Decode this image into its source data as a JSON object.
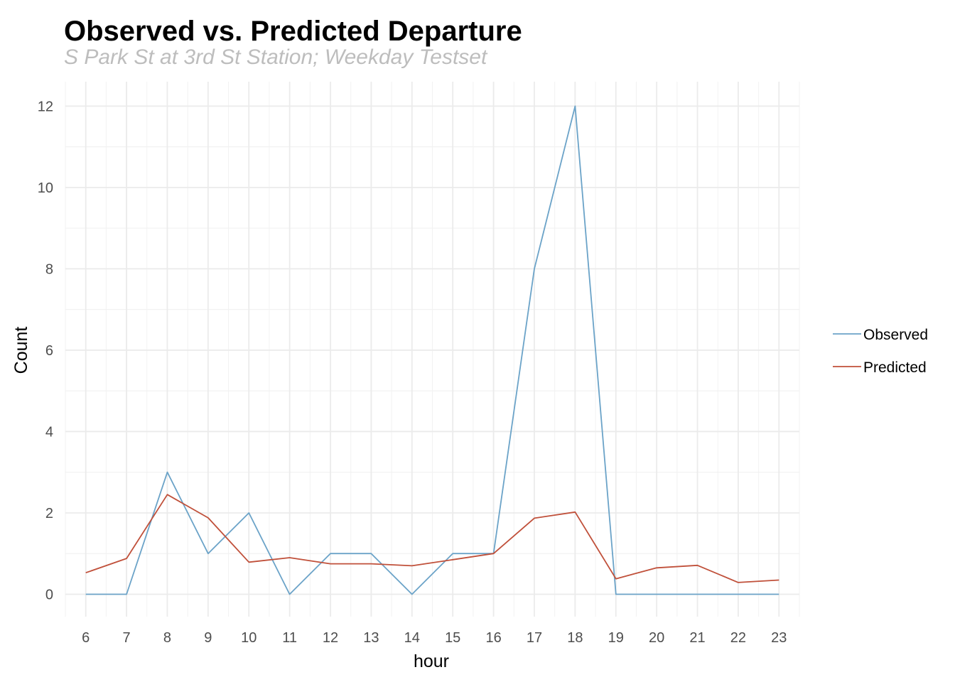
{
  "chart_data": {
    "type": "line",
    "title": "Observed vs. Predicted Departure",
    "subtitle": "S Park St at 3rd St Station; Weekday Testset",
    "xlabel": "hour",
    "ylabel": "Count",
    "x": [
      6,
      7,
      8,
      9,
      10,
      11,
      12,
      13,
      14,
      15,
      16,
      17,
      18,
      19,
      20,
      21,
      22,
      23
    ],
    "x_tick_labels": [
      "6",
      "7",
      "8",
      "9",
      "10",
      "11",
      "12",
      "13",
      "14",
      "15",
      "16",
      "17",
      "18",
      "19",
      "20",
      "21",
      "22",
      "23"
    ],
    "y_ticks": [
      0,
      2,
      4,
      6,
      8,
      10,
      12
    ],
    "y_tick_labels": [
      "0",
      "2",
      "4",
      "6",
      "8",
      "10",
      "12"
    ],
    "xlim": [
      5.5,
      23.5
    ],
    "ylim": [
      -0.55,
      12.6
    ],
    "grid": true,
    "legend_position": "right",
    "series": [
      {
        "name": "Observed",
        "color": "#6BA3C8",
        "values": [
          0,
          0,
          3,
          1,
          2,
          0,
          1,
          1,
          0,
          1,
          1,
          8,
          12,
          0,
          0,
          0,
          0,
          0
        ]
      },
      {
        "name": "Predicted",
        "color": "#C0503A",
        "values": [
          0.53,
          0.88,
          2.45,
          1.88,
          0.79,
          0.9,
          0.75,
          0.75,
          0.7,
          0.85,
          1.0,
          1.87,
          2.02,
          0.38,
          0.65,
          0.71,
          0.29,
          0.35
        ]
      }
    ]
  }
}
